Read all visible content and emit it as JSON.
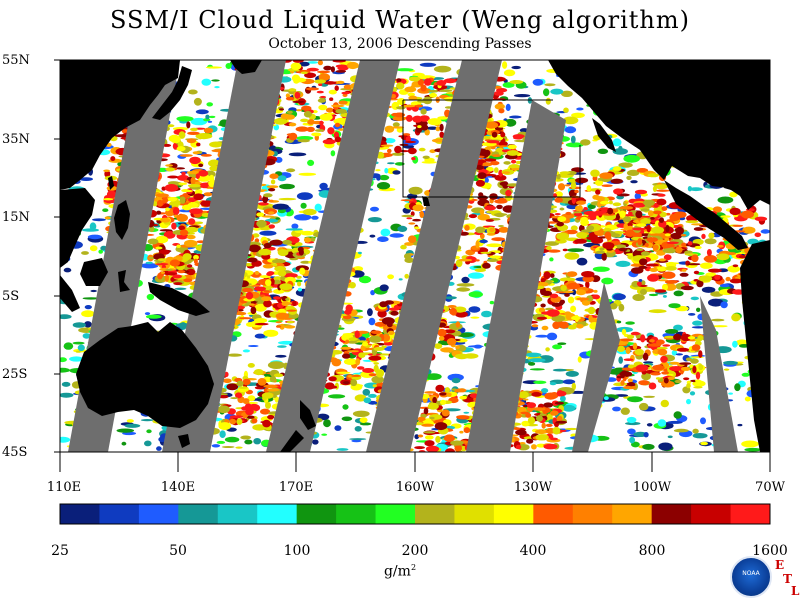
{
  "title": "SSM/I Cloud Liquid Water (Weng algorithm)",
  "subtitle": "October 13, 2006  Descending Passes",
  "latitude_labels": [
    "55N",
    "35N",
    "15N",
    "5S",
    "25S",
    "45S"
  ],
  "longitude_labels": [
    "110E",
    "140E",
    "170E",
    "160W",
    "130W",
    "100W",
    "70W"
  ],
  "colorbar": {
    "tick_labels": [
      "25",
      "50",
      "100",
      "200",
      "400",
      "800",
      "1600"
    ],
    "unit": "g/m",
    "unit_superscript": "2",
    "colors": [
      "#0a1f7a",
      "#0f3bc0",
      "#1f5cff",
      "#159896",
      "#19c6c6",
      "#22ffff",
      "#109510",
      "#16c216",
      "#22ff22",
      "#b3b31c",
      "#e0e000",
      "#ffff00",
      "#ff5a00",
      "#ff8000",
      "#ffa600",
      "#8c0000",
      "#c80000",
      "#ff1a1a"
    ]
  },
  "land_color": "#000000",
  "no_data_color": "#6e6e6e",
  "ocean_clear_color": "#ffffff",
  "logo": {
    "text": "NOAA",
    "letters": [
      "E",
      "T",
      "L"
    ]
  }
}
